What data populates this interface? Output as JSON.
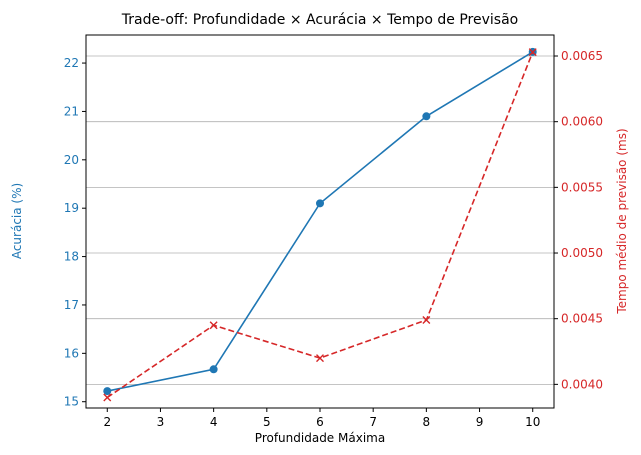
{
  "chart_data": {
    "type": "line",
    "title": "Trade-off: Profundidade × Acurácia × Tempo de Previsão",
    "xlabel": "Profundidade Máxima",
    "x": [
      2,
      4,
      6,
      8,
      10
    ],
    "xlim": [
      1.6,
      10.4
    ],
    "x_ticks": [
      "2",
      "3",
      "4",
      "5",
      "6",
      "7",
      "8",
      "9",
      "10"
    ],
    "grid": "horizontal lines at right-axis ticks",
    "series": [
      {
        "axis": "left",
        "values": [
          15.22,
          15.67,
          19.1,
          20.9,
          22.23
        ],
        "color": "#1f77b4",
        "marker": "circle",
        "linestyle": "solid"
      },
      {
        "axis": "right",
        "values": [
          0.0039,
          0.00445,
          0.0042,
          0.00449,
          0.00653
        ],
        "color": "#d62728",
        "marker": "x",
        "linestyle": "dashed"
      }
    ],
    "left_axis": {
      "label": "Acurácia (%)",
      "ylim": [
        14.87,
        22.58
      ],
      "ticks": [
        "15",
        "16",
        "17",
        "18",
        "19",
        "20",
        "21",
        "22"
      ],
      "color": "#1f77b4"
    },
    "right_axis": {
      "label": "Tempo médio de previsão (ms)",
      "ylim": [
        0.00382,
        0.00666
      ],
      "ticks": [
        "0.0040",
        "0.0045",
        "0.0050",
        "0.0055",
        "0.0060",
        "0.0065"
      ],
      "color": "#d62728"
    }
  }
}
